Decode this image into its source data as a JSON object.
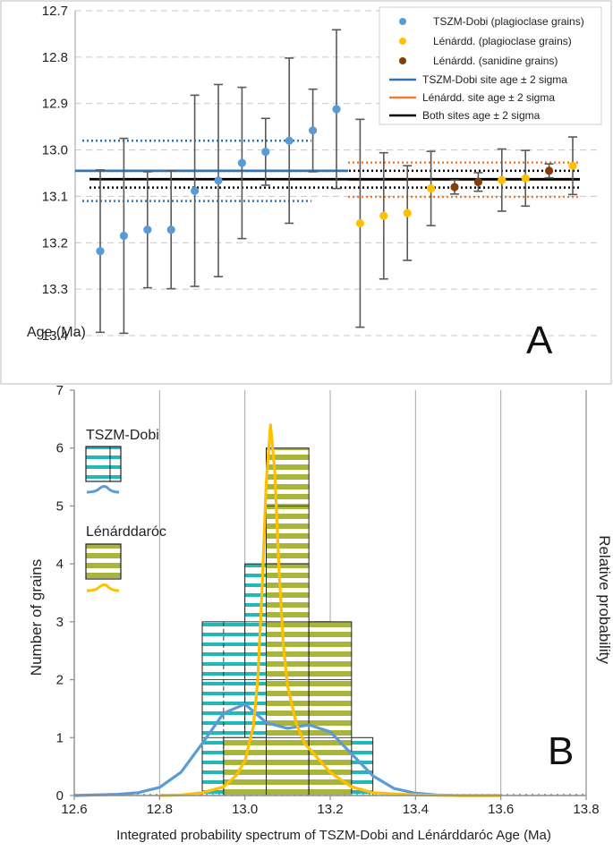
{
  "chart_data": [
    {
      "type": "scatter",
      "panel_label": "A",
      "ylabel": "Age (Ma)",
      "ylim": [
        12.7,
        13.4
      ],
      "y_inverted": true,
      "yticks": [
        "12.7",
        "12.8",
        "12.9",
        "13.0",
        "13.1",
        "13.2",
        "13.3",
        "13.4"
      ],
      "legend_position": "top-right",
      "legend": [
        {
          "label": "TSZM-Dobi (plagioclase grains)",
          "kind": "dot",
          "color": "#5b9bd5"
        },
        {
          "label": "Lénárdd. (plagioclase grains)",
          "kind": "dot",
          "color": "#ffc000"
        },
        {
          "label": "Lénárdd. (sanidine grains)",
          "kind": "dot",
          "color": "#843c0c"
        },
        {
          "label": "TSZM-Dobi site age ± 2 sigma",
          "kind": "line",
          "color": "#2e75b6"
        },
        {
          "label": "Lénárdd. site age ± 2 sigma",
          "kind": "line",
          "color": "#ed7d31"
        },
        {
          "label": "Both sites age ± 2 sigma",
          "kind": "line",
          "color": "#000000"
        }
      ],
      "series": [
        {
          "name": "TSZM-Dobi (plagioclase grains)",
          "color": "#5b9bd5",
          "points": [
            {
              "y": 13.218,
              "lo": 13.043,
              "hi": 13.393
            },
            {
              "y": 13.185,
              "lo": 12.975,
              "hi": 13.395
            },
            {
              "y": 13.172,
              "lo": 13.047,
              "hi": 13.297
            },
            {
              "y": 13.172,
              "lo": 13.045,
              "hi": 13.299
            },
            {
              "y": 13.088,
              "lo": 12.882,
              "hi": 13.294
            },
            {
              "y": 13.066,
              "lo": 12.859,
              "hi": 13.273
            },
            {
              "y": 13.028,
              "lo": 12.865,
              "hi": 13.191
            },
            {
              "y": 13.004,
              "lo": 12.932,
              "hi": 13.076
            },
            {
              "y": 12.98,
              "lo": 12.802,
              "hi": 13.158
            },
            {
              "y": 12.958,
              "lo": 12.869,
              "hi": 13.047
            },
            {
              "y": 12.912,
              "lo": 12.741,
              "hi": 13.083
            }
          ]
        },
        {
          "name": "Lénárdd. (plagioclase grains)",
          "color": "#ffc000",
          "points": [
            {
              "y": 13.158,
              "lo": 12.934,
              "hi": 13.382
            },
            {
              "y": 13.142,
              "lo": 13.006,
              "hi": 13.278
            },
            {
              "y": 13.136,
              "lo": 13.034,
              "hi": 13.238
            },
            {
              "y": 13.083,
              "lo": 13.003,
              "hi": 13.163
            },
            {
              "y": 13.065,
              "lo": 12.998,
              "hi": 13.132
            },
            {
              "y": 13.061,
              "lo": 13.001,
              "hi": 13.121
            },
            {
              "y": 13.034,
              "lo": 12.972,
              "hi": 13.096
            }
          ]
        },
        {
          "name": "Lénárdd. (sanidine grains)",
          "color": "#843c0c",
          "points": [
            {
              "y": 13.08,
              "lo": 13.065,
              "hi": 13.095
            },
            {
              "y": 13.069,
              "lo": 13.049,
              "hi": 13.089
            },
            {
              "y": 13.045,
              "lo": 13.03,
              "hi": 13.06
            }
          ]
        }
      ],
      "site_ages": [
        {
          "name": "TSZM-Dobi site age ± 2 sigma",
          "mean": 13.045,
          "lo": 12.98,
          "hi": 13.11,
          "color": "#2e75b6"
        },
        {
          "name": "Lénárdd. site age ± 2 sigma",
          "mean": 13.064,
          "lo": 13.027,
          "hi": 13.101,
          "color": "#ed7d31"
        },
        {
          "name": "Both sites age ± 2 sigma",
          "mean": 13.063,
          "lo": 13.045,
          "hi": 13.081,
          "color": "#000000"
        }
      ]
    },
    {
      "type": "bar",
      "panel_label": "B",
      "xlabel": "Integrated probability spectrum of TSZM-Dobi and Lénárddaróc Age (Ma)",
      "ylabel": "Number of grains",
      "ylabel_right": "Relative probability",
      "xlim": [
        12.6,
        13.8
      ],
      "ylim": [
        0,
        7
      ],
      "xticks": [
        "12.6",
        "12.8",
        "13.0",
        "13.2",
        "13.4",
        "13.6",
        "13.8"
      ],
      "yticks": [
        "0",
        "1",
        "2",
        "3",
        "4",
        "5",
        "6",
        "7"
      ],
      "bin_width": 0.1,
      "series": [
        {
          "name": "TSZM-Dobi",
          "color": "#22b8b8",
          "pattern": "horizontal stripes",
          "bins": [
            {
              "x0": 12.9,
              "x1": 13.0,
              "count": 3
            },
            {
              "x0": 13.0,
              "x1": 13.1,
              "count": 4
            },
            {
              "x0": 13.1,
              "x1": 13.2,
              "count": 3
            },
            {
              "x0": 13.2,
              "x1": 13.3,
              "count": 1
            }
          ],
          "curve_color": "#5b9bd5",
          "curve": {
            "x": [
              12.6,
              12.65,
              12.7,
              12.75,
              12.8,
              12.85,
              12.9,
              12.95,
              13.0,
              13.05,
              13.1,
              13.15,
              13.2,
              13.25,
              13.3,
              13.35,
              13.4,
              13.45,
              13.5,
              13.55,
              13.6
            ],
            "y": [
              0,
              0.01,
              0.02,
              0.05,
              0.14,
              0.4,
              0.9,
              1.42,
              1.58,
              1.26,
              1.16,
              1.22,
              1.1,
              0.72,
              0.34,
              0.12,
              0.04,
              0.01,
              0,
              0,
              0
            ]
          }
        },
        {
          "name": "Lénárddaróc",
          "color": "#a9b43b",
          "pattern": "horizontal stripes",
          "bins": [
            {
              "x0": 12.95,
              "x1": 13.05,
              "count": 1
            },
            {
              "x0": 13.05,
              "x1": 13.15,
              "count": 6
            },
            {
              "x0": 13.15,
              "x1": 13.25,
              "count": 3
            }
          ],
          "curve_color": "#ffc000",
          "curve": {
            "x": [
              12.8,
              12.85,
              12.9,
              12.95,
              12.98,
              13.0,
              13.02,
              13.03,
              13.04,
              13.05,
              13.06,
              13.07,
              13.08,
              13.09,
              13.1,
              13.12,
              13.14,
              13.17,
              13.2,
              13.25,
              13.3,
              13.4,
              13.5,
              13.6
            ],
            "y": [
              0,
              0.01,
              0.05,
              0.15,
              0.35,
              0.6,
              1.2,
              2.0,
              3.5,
              5.4,
              6.4,
              5.6,
              3.9,
              2.6,
              1.9,
              1.25,
              0.9,
              0.65,
              0.4,
              0.15,
              0.05,
              0.01,
              0,
              0
            ]
          }
        }
      ]
    }
  ]
}
